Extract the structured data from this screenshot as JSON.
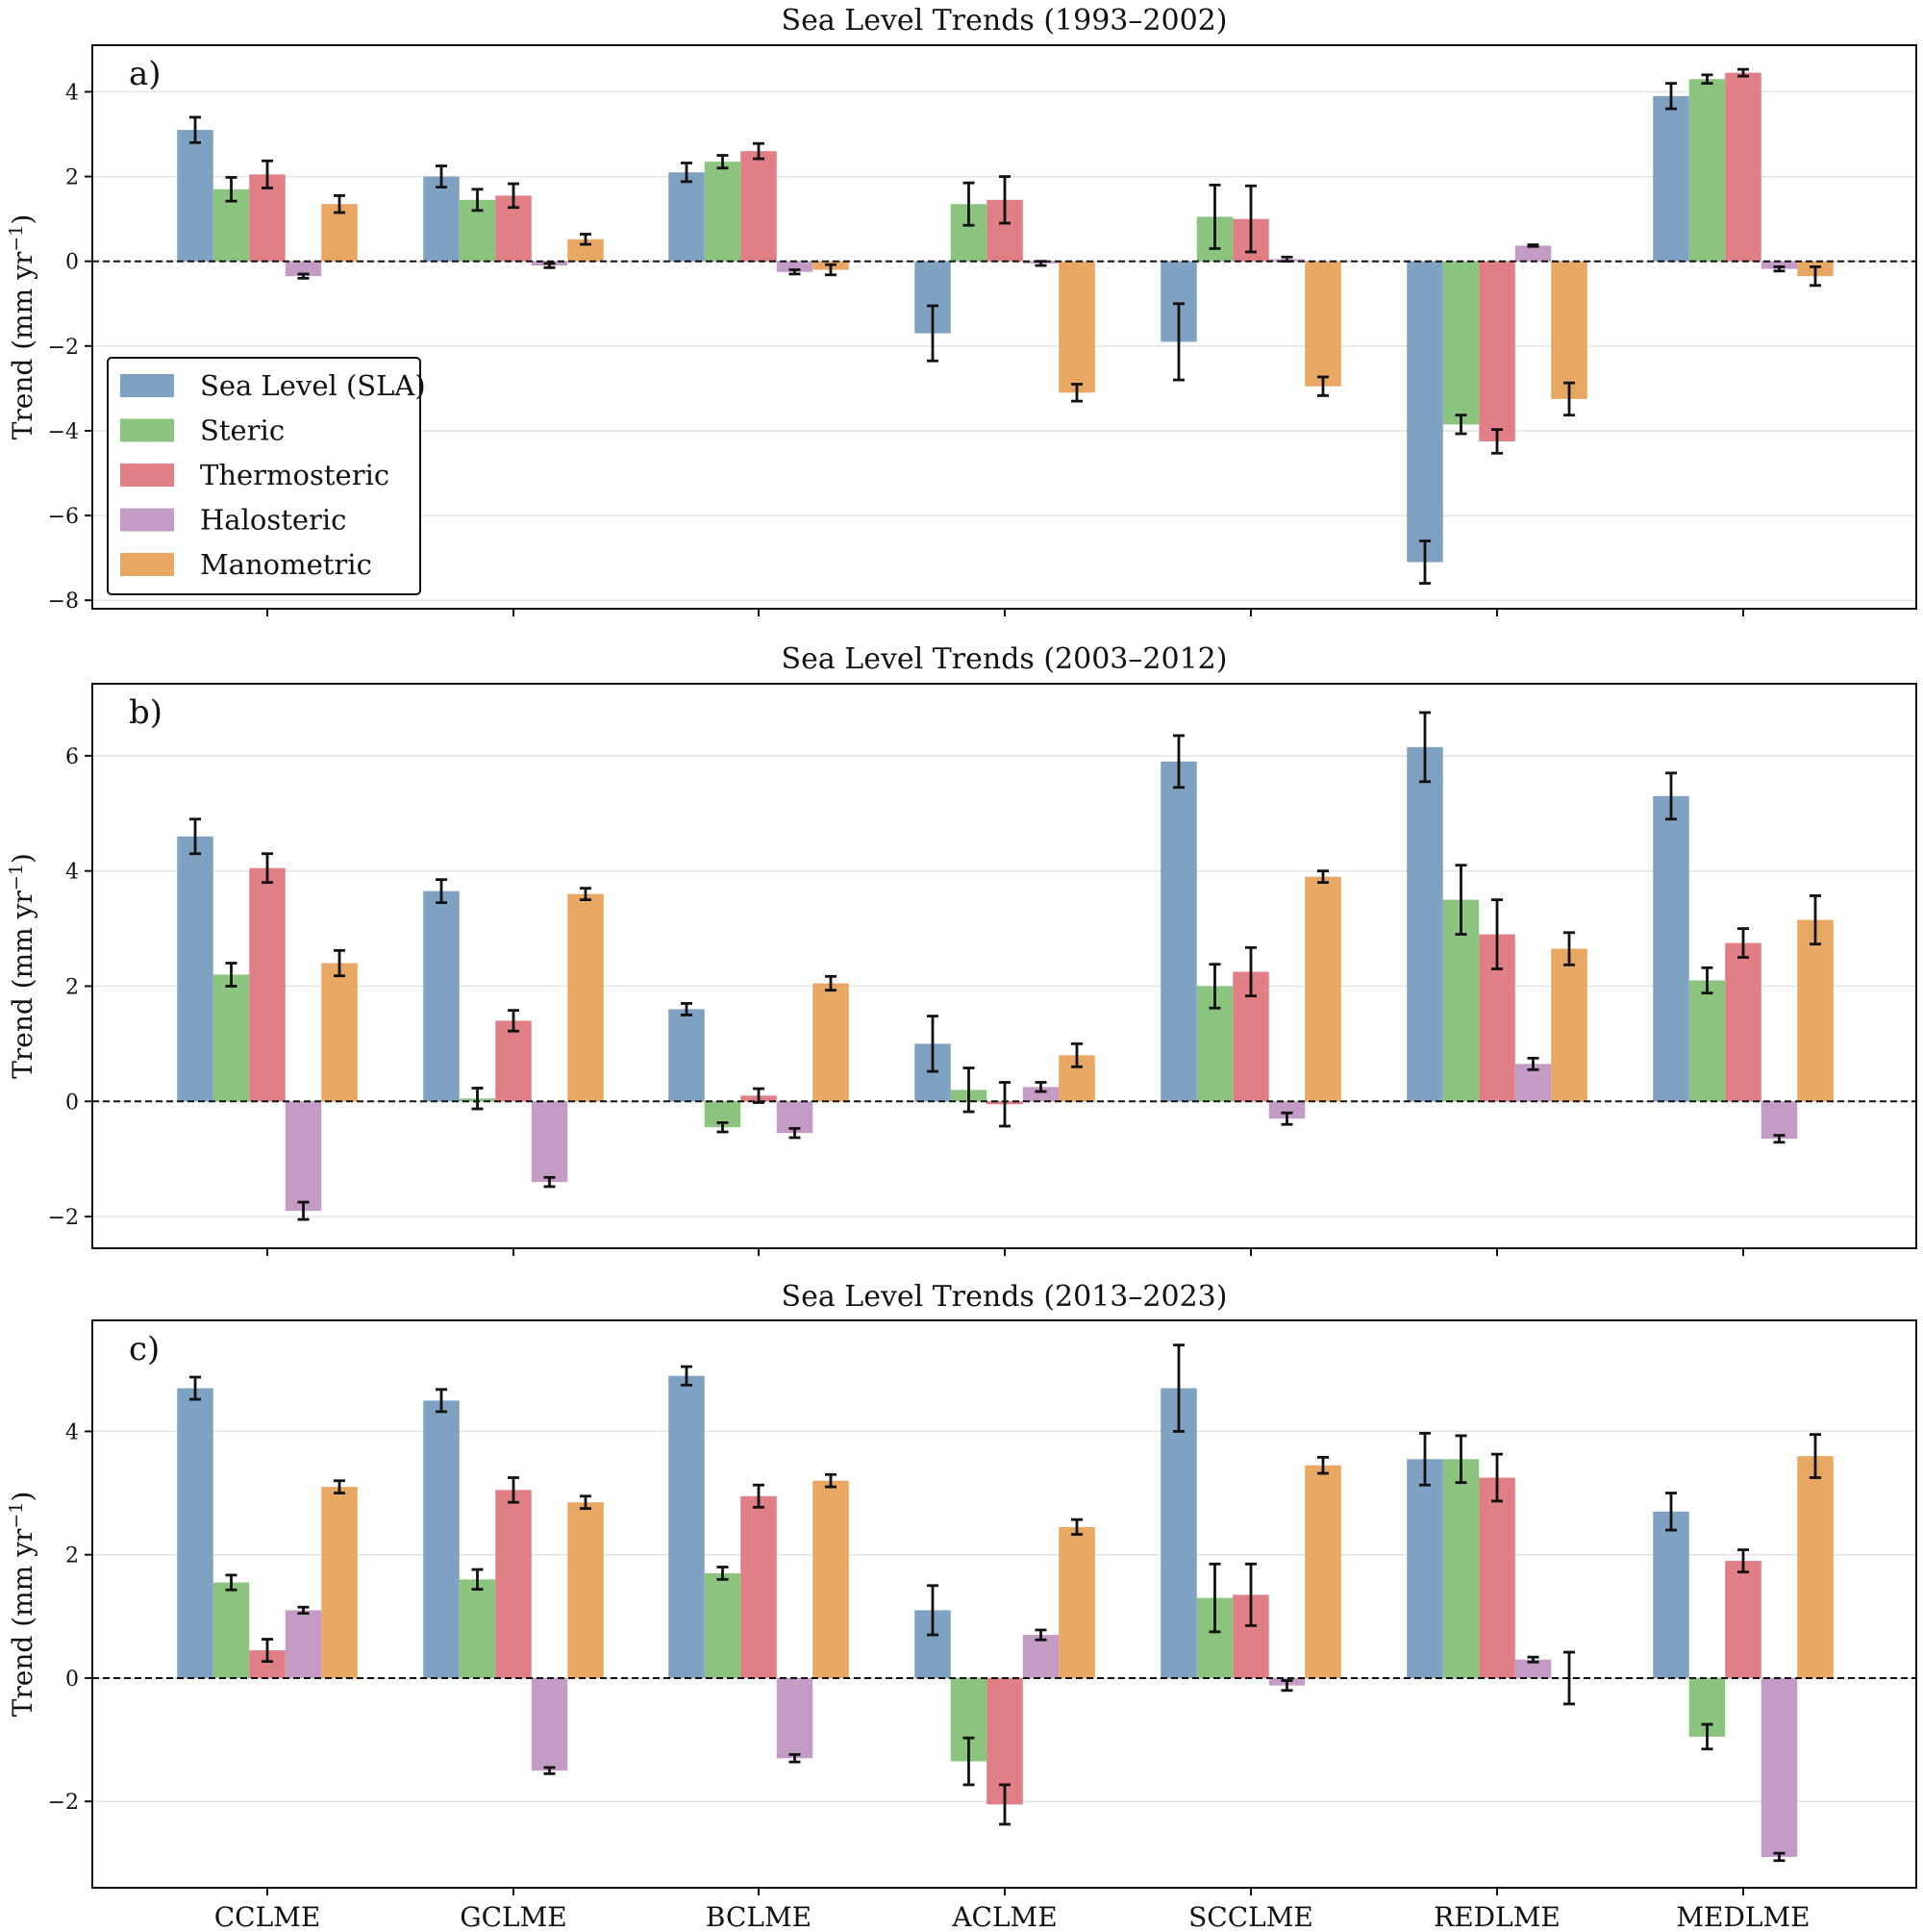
{
  "chart_data": [
    {
      "type": "bar",
      "panel_label": "a)",
      "title": "Sea Level Trends (1993–2002)",
      "ylabel": "Trend (mm yr",
      "ylabel_sup": "−1",
      "ylabel_close": ")",
      "ylim": [
        -8.2,
        5.1
      ],
      "yticks": [
        -8,
        -6,
        -4,
        -2,
        0,
        2,
        4
      ],
      "categories": [
        "CCLME",
        "GCLME",
        "BCLME",
        "ACLME",
        "SCCLME",
        "REDLME",
        "MEDLME"
      ],
      "show_xlabels": false,
      "show_legend": true,
      "series": [
        {
          "name": "Sea Level (SLA)",
          "values": [
            3.1,
            2.0,
            2.1,
            -1.7,
            -1.9,
            -7.1,
            3.9
          ],
          "errors": [
            0.3,
            0.25,
            0.22,
            0.65,
            0.9,
            0.5,
            0.3
          ]
        },
        {
          "name": "Steric",
          "values": [
            1.7,
            1.45,
            2.35,
            1.35,
            1.05,
            -3.85,
            4.3
          ],
          "errors": [
            0.28,
            0.25,
            0.15,
            0.5,
            0.75,
            0.22,
            0.1
          ]
        },
        {
          "name": "Thermosteric",
          "values": [
            2.05,
            1.55,
            2.6,
            1.45,
            1.0,
            -4.25,
            4.45
          ],
          "errors": [
            0.32,
            0.28,
            0.18,
            0.55,
            0.78,
            0.28,
            0.08
          ]
        },
        {
          "name": "Halosteric",
          "values": [
            -0.35,
            -0.1,
            -0.25,
            -0.05,
            0.05,
            0.37,
            -0.18
          ],
          "errors": [
            0.05,
            0.05,
            0.05,
            0.05,
            0.05,
            0.02,
            0.05
          ]
        },
        {
          "name": "Manometric",
          "values": [
            1.35,
            0.52,
            -0.2,
            -3.1,
            -2.95,
            -3.25,
            -0.35
          ],
          "errors": [
            0.2,
            0.12,
            0.12,
            0.2,
            0.22,
            0.38,
            0.22
          ]
        }
      ]
    },
    {
      "type": "bar",
      "panel_label": "b)",
      "title": "Sea Level Trends (2003–2012)",
      "ylabel": "Trend (mm yr",
      "ylabel_sup": "−1",
      "ylabel_close": ")",
      "ylim": [
        -2.55,
        7.25
      ],
      "yticks": [
        -2,
        0,
        2,
        4,
        6
      ],
      "categories": [
        "CCLME",
        "GCLME",
        "BCLME",
        "ACLME",
        "SCCLME",
        "REDLME",
        "MEDLME"
      ],
      "show_xlabels": false,
      "show_legend": false,
      "series": [
        {
          "name": "Sea Level (SLA)",
          "values": [
            4.6,
            3.65,
            1.6,
            1.0,
            5.9,
            6.15,
            5.3
          ],
          "errors": [
            0.3,
            0.2,
            0.1,
            0.48,
            0.45,
            0.6,
            0.4
          ]
        },
        {
          "name": "Steric",
          "values": [
            2.2,
            0.05,
            -0.45,
            0.2,
            2.0,
            3.5,
            2.1
          ],
          "errors": [
            0.2,
            0.18,
            0.08,
            0.38,
            0.38,
            0.6,
            0.22
          ]
        },
        {
          "name": "Thermosteric",
          "values": [
            4.05,
            1.4,
            0.1,
            -0.05,
            2.25,
            2.9,
            2.75
          ],
          "errors": [
            0.25,
            0.18,
            0.12,
            0.38,
            0.42,
            0.6,
            0.25
          ]
        },
        {
          "name": "Halosteric",
          "values": [
            -1.9,
            -1.4,
            -0.55,
            0.25,
            -0.3,
            0.65,
            -0.65
          ],
          "errors": [
            0.15,
            0.08,
            0.08,
            0.08,
            0.1,
            0.1,
            0.06
          ]
        },
        {
          "name": "Manometric",
          "values": [
            2.4,
            3.6,
            2.05,
            0.8,
            3.9,
            2.65,
            3.15
          ],
          "errors": [
            0.22,
            0.1,
            0.12,
            0.2,
            0.1,
            0.28,
            0.42
          ]
        }
      ]
    },
    {
      "type": "bar",
      "panel_label": "c)",
      "title": "Sea Level Trends (2013–2023)",
      "ylabel": "Trend (mm yr",
      "ylabel_sup": "−1",
      "ylabel_close": ")",
      "ylim": [
        -3.4,
        5.8
      ],
      "yticks": [
        -2,
        0,
        2,
        4
      ],
      "categories": [
        "CCLME",
        "GCLME",
        "BCLME",
        "ACLME",
        "SCCLME",
        "REDLME",
        "MEDLME"
      ],
      "show_xlabels": true,
      "show_legend": false,
      "series": [
        {
          "name": "Sea Level (SLA)",
          "values": [
            4.7,
            4.5,
            4.9,
            1.1,
            4.7,
            3.55,
            2.7
          ],
          "errors": [
            0.18,
            0.18,
            0.15,
            0.4,
            0.7,
            0.42,
            0.3
          ]
        },
        {
          "name": "Steric",
          "values": [
            1.55,
            1.6,
            1.7,
            -1.35,
            1.3,
            3.55,
            -0.95
          ],
          "errors": [
            0.12,
            0.16,
            0.1,
            0.38,
            0.55,
            0.38,
            0.2
          ]
        },
        {
          "name": "Thermosteric",
          "values": [
            0.45,
            3.05,
            2.95,
            -2.05,
            1.35,
            3.25,
            1.9
          ],
          "errors": [
            0.18,
            0.2,
            0.18,
            0.32,
            0.5,
            0.38,
            0.18
          ]
        },
        {
          "name": "Halosteric",
          "values": [
            1.1,
            -1.5,
            -1.3,
            0.7,
            -0.12,
            0.3,
            -2.9
          ],
          "errors": [
            0.05,
            0.05,
            0.06,
            0.08,
            0.08,
            0.04,
            0.06
          ]
        },
        {
          "name": "Manometric",
          "values": [
            3.1,
            2.85,
            3.2,
            2.45,
            3.45,
            0.0,
            3.6
          ],
          "errors": [
            0.1,
            0.1,
            0.1,
            0.12,
            0.13,
            0.42,
            0.35
          ]
        }
      ]
    }
  ],
  "series_colors": [
    "#7fa1c2",
    "#8ac47f",
    "#e07f86",
    "#c39bc4",
    "#e8a763"
  ],
  "legend_edge_color": "#111111",
  "grid_color": "#e3e3e3",
  "zero_line_color": "#111111"
}
